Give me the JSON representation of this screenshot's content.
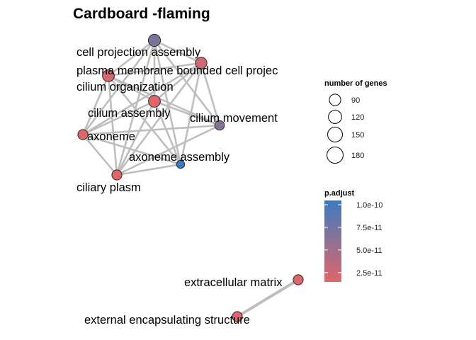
{
  "title": "Cardboard -flaming",
  "nodes": [
    {
      "id": "cell_projection_assembly",
      "label": "cell projection assembly",
      "size": 185,
      "p": 6.5e-11
    },
    {
      "id": "plasma_membrane",
      "label": "plasma membrane bounded cell projec",
      "size": 165,
      "p": 2e-11
    },
    {
      "id": "cilium_organization",
      "label": "cilium organization",
      "size": 175,
      "p": 1.5e-11
    },
    {
      "id": "cilium_assembly",
      "label": "cilium assembly",
      "size": 175,
      "p": 1e-11
    },
    {
      "id": "cilium_movement",
      "label": "cilium movement",
      "size": 115,
      "p": 6e-11
    },
    {
      "id": "axoneme",
      "label": "axoneme",
      "size": 125,
      "p": 1e-11
    },
    {
      "id": "axoneme_assembly",
      "label": "axoneme assembly",
      "size": 80,
      "p": 1e-10
    },
    {
      "id": "ciliary_plasm",
      "label": "ciliary plasm",
      "size": 125,
      "p": 1e-11
    },
    {
      "id": "extracellular_matrix",
      "label": "extracellular matrix",
      "size": 125,
      "p": 1e-11
    },
    {
      "id": "external_encapsulating",
      "label": "external encapsulating structure",
      "size": 125,
      "p": 1e-11
    }
  ],
  "edges": [
    [
      "cell_projection_assembly",
      "plasma_membrane"
    ],
    [
      "cell_projection_assembly",
      "cilium_organization"
    ],
    [
      "cell_projection_assembly",
      "cilium_assembly"
    ],
    [
      "cell_projection_assembly",
      "cilium_movement"
    ],
    [
      "cell_projection_assembly",
      "axoneme"
    ],
    [
      "cell_projection_assembly",
      "axoneme_assembly"
    ],
    [
      "cell_projection_assembly",
      "ciliary_plasm"
    ],
    [
      "plasma_membrane",
      "cilium_organization"
    ],
    [
      "plasma_membrane",
      "cilium_assembly"
    ],
    [
      "plasma_membrane",
      "cilium_movement"
    ],
    [
      "plasma_membrane",
      "axoneme"
    ],
    [
      "plasma_membrane",
      "axoneme_assembly"
    ],
    [
      "plasma_membrane",
      "ciliary_plasm"
    ],
    [
      "cilium_organization",
      "cilium_assembly"
    ],
    [
      "cilium_organization",
      "cilium_movement"
    ],
    [
      "cilium_organization",
      "axoneme"
    ],
    [
      "cilium_organization",
      "axoneme_assembly"
    ],
    [
      "cilium_organization",
      "ciliary_plasm"
    ],
    [
      "cilium_assembly",
      "cilium_movement"
    ],
    [
      "cilium_assembly",
      "axoneme"
    ],
    [
      "cilium_assembly",
      "axoneme_assembly"
    ],
    [
      "cilium_assembly",
      "ciliary_plasm"
    ],
    [
      "cilium_movement",
      "axoneme"
    ],
    [
      "cilium_movement",
      "ciliary_plasm"
    ],
    [
      "axoneme",
      "axoneme_assembly"
    ],
    [
      "axoneme",
      "ciliary_plasm"
    ],
    [
      "axoneme_assembly",
      "ciliary_plasm"
    ],
    [
      "extracellular_matrix",
      "external_encapsulating"
    ]
  ],
  "legend": {
    "size_title": "number of genes",
    "size_breaks": [
      90,
      120,
      150,
      180
    ],
    "color_title": "p.adjust",
    "color_breaks": [
      {
        "value": 1e-10,
        "label": "1.0e-10"
      },
      {
        "value": 7.5e-11,
        "label": "7.5e-11"
      },
      {
        "value": 5e-11,
        "label": "5.0e-11"
      },
      {
        "value": 2.5e-11,
        "label": "2.5e-11"
      }
    ],
    "color_range": [
      1e-11,
      1e-10
    ],
    "color_low": "#e0666a",
    "color_high": "#3b7bbf"
  }
}
